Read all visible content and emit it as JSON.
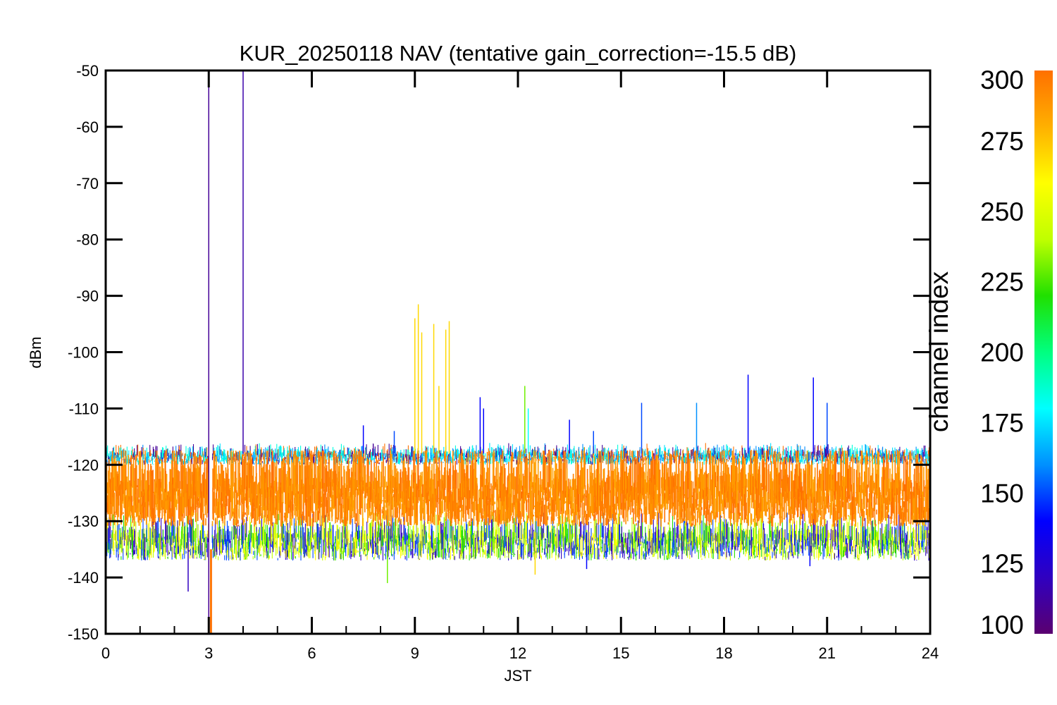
{
  "chart_data": {
    "type": "line",
    "title": "KUR_20250118 NAV (tentative gain_correction=-15.5 dB)",
    "xlabel": "JST",
    "ylabel": "dBm",
    "xlim": [
      0,
      24
    ],
    "ylim": [
      -150,
      -50
    ],
    "x_ticks": [
      "0",
      "3",
      "6",
      "9",
      "12",
      "15",
      "18",
      "21",
      "24"
    ],
    "y_ticks": [
      "-50",
      "-60",
      "-70",
      "-80",
      "-90",
      "-100",
      "-110",
      "-120",
      "-130",
      "-140",
      "-150"
    ],
    "grid": false,
    "colorbar": {
      "label": "channel index",
      "min": 100,
      "max": 300,
      "ticks": [
        "300",
        "275",
        "250",
        "225",
        "200",
        "175",
        "150",
        "125",
        "100"
      ],
      "colormap": [
        "#5a0070",
        "#3000c0",
        "#0000ff",
        "#0090ff",
        "#00ffff",
        "#00ff80",
        "#20e000",
        "#c0ff00",
        "#ffff00",
        "#ffb000",
        "#ff7000"
      ]
    },
    "noise_band": {
      "description_values": {
        "orange_core_min": -131,
        "orange_core_max": -119,
        "cyan_upper_min": -119,
        "cyan_upper_max": -116,
        "green_lower_min": -135,
        "green_lower_max": -131
      },
      "gap": {
        "x_start": 3.0,
        "x_end": 3.1
      }
    },
    "spikes": [
      {
        "x": 3.0,
        "y_top": -50,
        "y_bottom": -150,
        "channel": 110
      },
      {
        "x": 3.05,
        "y_top": -135,
        "y_bottom": -150,
        "channel": 300
      },
      {
        "x": 3.08,
        "y_top": -135,
        "y_bottom": -150,
        "channel": 300
      },
      {
        "x": 4.0,
        "y_top": -50,
        "y_bottom": -118,
        "channel": 115
      },
      {
        "x": 9.0,
        "y_top": -94,
        "y_bottom": -118,
        "channel": 270
      },
      {
        "x": 9.1,
        "y_top": -91.5,
        "y_bottom": -118,
        "channel": 270
      },
      {
        "x": 9.2,
        "y_top": -96.5,
        "y_bottom": -118,
        "channel": 270
      },
      {
        "x": 9.55,
        "y_top": -95,
        "y_bottom": -118,
        "channel": 270
      },
      {
        "x": 9.7,
        "y_top": -106,
        "y_bottom": -118,
        "channel": 270
      },
      {
        "x": 9.9,
        "y_top": -96,
        "y_bottom": -118,
        "channel": 270
      },
      {
        "x": 10.0,
        "y_top": -94.5,
        "y_bottom": -118,
        "channel": 270
      },
      {
        "x": 7.5,
        "y_top": -113,
        "y_bottom": -118,
        "channel": 140
      },
      {
        "x": 8.4,
        "y_top": -114,
        "y_bottom": -118,
        "channel": 150
      },
      {
        "x": 10.9,
        "y_top": -108,
        "y_bottom": -118,
        "channel": 140
      },
      {
        "x": 11.0,
        "y_top": -110,
        "y_bottom": -118,
        "channel": 140
      },
      {
        "x": 12.2,
        "y_top": -106,
        "y_bottom": -118,
        "channel": 230
      },
      {
        "x": 12.3,
        "y_top": -110,
        "y_bottom": -118,
        "channel": 180
      },
      {
        "x": 13.5,
        "y_top": -112,
        "y_bottom": -118,
        "channel": 140
      },
      {
        "x": 14.2,
        "y_top": -114,
        "y_bottom": -118,
        "channel": 150
      },
      {
        "x": 15.6,
        "y_top": -109,
        "y_bottom": -118,
        "channel": 150
      },
      {
        "x": 17.2,
        "y_top": -109,
        "y_bottom": -118,
        "channel": 160
      },
      {
        "x": 18.7,
        "y_top": -104,
        "y_bottom": -118,
        "channel": 140
      },
      {
        "x": 20.6,
        "y_top": -104.5,
        "y_bottom": -118,
        "channel": 140
      },
      {
        "x": 21.0,
        "y_top": -109,
        "y_bottom": -118,
        "channel": 150
      },
      {
        "x": 2.4,
        "y_top": -132,
        "y_bottom": -142.5,
        "channel": 120
      },
      {
        "x": 8.2,
        "y_top": -132,
        "y_bottom": -141,
        "channel": 230
      },
      {
        "x": 12.5,
        "y_top": -132,
        "y_bottom": -139.5,
        "channel": 270
      },
      {
        "x": 14.0,
        "y_top": -132,
        "y_bottom": -138.5,
        "channel": 140
      },
      {
        "x": 20.5,
        "y_top": -132,
        "y_bottom": -138,
        "channel": 140
      }
    ]
  }
}
